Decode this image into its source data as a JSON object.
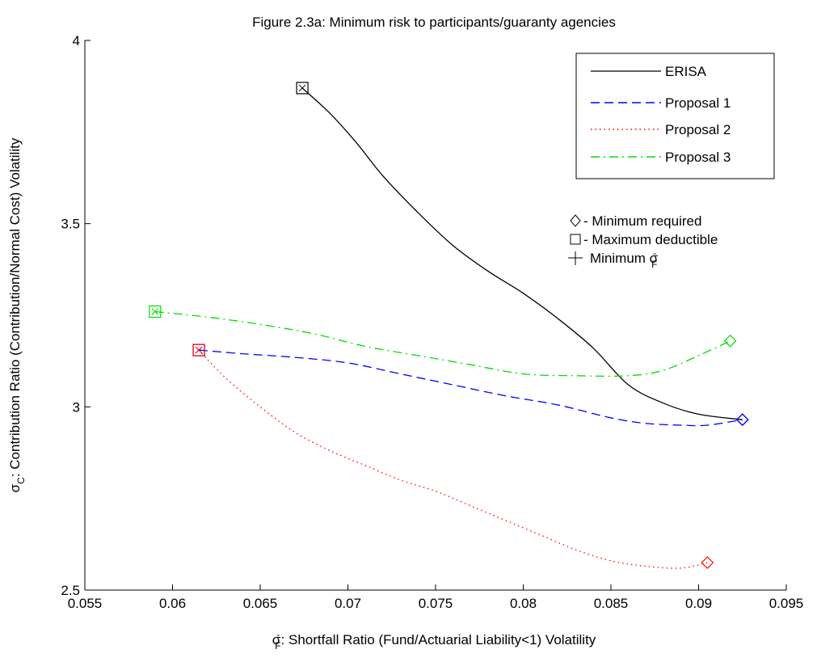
{
  "chart_data": {
    "type": "line",
    "title": "Figure 2.3a:  Minimum risk to participants/guaranty agencies",
    "xlabel_symbol": "σ",
    "xlabel_sub": "F",
    "xlabel_sup": "-",
    "xlabel_text": ": Shortfall Ratio (Fund/Actuarial Liability<1) Volatility",
    "ylabel_symbol": "σ",
    "ylabel_sub": "C",
    "ylabel_text": ": Contribution Ratio (Contribution/Normal Cost) Volatility",
    "xlim": [
      0.055,
      0.095
    ],
    "ylim": [
      2.5,
      4
    ],
    "xticks": [
      0.055,
      0.06,
      0.065,
      0.07,
      0.075,
      0.08,
      0.085,
      0.09,
      0.095
    ],
    "xtick_labels": [
      "0.055",
      "0.06",
      "0.065",
      "0.07",
      "0.075",
      "0.08",
      "0.085",
      "0.09",
      "0.095"
    ],
    "yticks": [
      2.5,
      3,
      3.5,
      4
    ],
    "ytick_labels": [
      "2.5",
      "3",
      "3.5",
      "4"
    ],
    "grid": false,
    "legend_position": "top-right",
    "series": [
      {
        "name": "ERISA",
        "color": "#000000",
        "dash": "solid",
        "x": [
          0.0674,
          0.069,
          0.0705,
          0.072,
          0.074,
          0.076,
          0.078,
          0.08,
          0.082,
          0.084,
          0.086,
          0.088,
          0.09,
          0.0925
        ],
        "y": [
          3.87,
          3.8,
          3.72,
          3.63,
          3.53,
          3.44,
          3.37,
          3.31,
          3.24,
          3.16,
          3.06,
          3.01,
          2.98,
          2.965
        ],
        "start_marker": "square-x",
        "end_marker": "diamond"
      },
      {
        "name": "Proposal 1",
        "color": "#0000ff",
        "dash": "dashed",
        "x": [
          0.0615,
          0.064,
          0.067,
          0.07,
          0.073,
          0.076,
          0.079,
          0.082,
          0.085,
          0.087,
          0.089,
          0.0905,
          0.0925
        ],
        "y": [
          3.155,
          3.145,
          3.135,
          3.12,
          3.09,
          3.06,
          3.03,
          3.005,
          2.97,
          2.955,
          2.95,
          2.95,
          2.965
        ],
        "start_marker": "square-x",
        "end_marker": "diamond"
      },
      {
        "name": "Proposal 2",
        "color": "#ff0000",
        "dash": "dotted",
        "x": [
          0.0615,
          0.063,
          0.065,
          0.067,
          0.069,
          0.071,
          0.073,
          0.075,
          0.077,
          0.079,
          0.081,
          0.083,
          0.085,
          0.087,
          0.089,
          0.0905
        ],
        "y": [
          3.155,
          3.08,
          3.0,
          2.93,
          2.88,
          2.84,
          2.8,
          2.77,
          2.73,
          2.69,
          2.65,
          2.61,
          2.58,
          2.565,
          2.56,
          2.575
        ],
        "start_marker": "square-x",
        "end_marker": "diamond"
      },
      {
        "name": "Proposal 3",
        "color": "#00dd00",
        "dash": "dashdot",
        "x": [
          0.059,
          0.062,
          0.065,
          0.068,
          0.071,
          0.074,
          0.077,
          0.08,
          0.083,
          0.086,
          0.088,
          0.09,
          0.0918
        ],
        "y": [
          3.26,
          3.245,
          3.225,
          3.2,
          3.165,
          3.14,
          3.115,
          3.09,
          3.085,
          3.085,
          3.1,
          3.14,
          3.18
        ],
        "start_marker": "square-x",
        "end_marker": "diamond"
      }
    ],
    "marker_legend": [
      {
        "symbol": "diamond",
        "label": "Minimum required"
      },
      {
        "symbol": "square",
        "label": "Maximum deductible"
      },
      {
        "symbol": "plus",
        "label": "Minimum σ",
        "label_sub": "F",
        "label_sup": "-"
      }
    ]
  }
}
